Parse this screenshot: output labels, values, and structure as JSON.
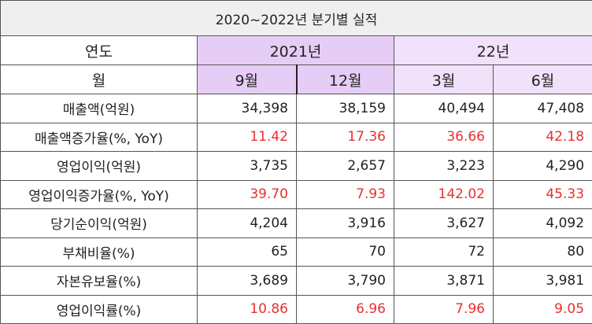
{
  "title": "2020~2022년 분기별 실적",
  "header": {
    "year_label": "연도",
    "years": [
      {
        "label": "2021년",
        "color": "#e6cdf6"
      },
      {
        "label": "22년",
        "color": "#f1e1fa"
      }
    ],
    "month_label": "월",
    "months": [
      "9월",
      "12월",
      "3월",
      "6월"
    ]
  },
  "rows": [
    {
      "label": "매출액(억원)",
      "values": [
        "34,398",
        "38,159",
        "40,494",
        "47,408"
      ],
      "color": "#222222"
    },
    {
      "label": "매출액증가율(%, YoY)",
      "values": [
        "11.42",
        "17.36",
        "36.66",
        "42.18"
      ],
      "color": "#e8302f"
    },
    {
      "label": "영업이익(억원)",
      "values": [
        "3,735",
        "2,657",
        "3,223",
        "4,290"
      ],
      "color": "#222222"
    },
    {
      "label": "영업이익증가율(%, YoY)",
      "values": [
        "39.70",
        "7.93",
        "142.02",
        "45.33"
      ],
      "color": "#e8302f"
    },
    {
      "label": "당기순이익(억원)",
      "values": [
        "4,204",
        "3,916",
        "3,627",
        "4,092"
      ],
      "color": "#222222"
    },
    {
      "label": "부채비율(%)",
      "values": [
        "65",
        "70",
        "72",
        "80"
      ],
      "color": "#222222"
    },
    {
      "label": "자본유보율(%)",
      "values": [
        "3,689",
        "3,790",
        "3,871",
        "3,981"
      ],
      "color": "#222222"
    },
    {
      "label": "영업이익률(%)",
      "values": [
        "10.86",
        "6.96",
        "7.96",
        "9.05"
      ],
      "color": "#e8302f"
    }
  ]
}
